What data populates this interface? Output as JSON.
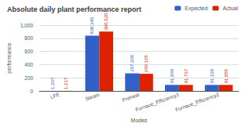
{
  "chart_data": {
    "type": "bar",
    "title": "Absolute daily plant performance report",
    "xlabel": "Modes",
    "ylabel": "performance",
    "categories": [
      "LFE",
      "Steam",
      "Preheat",
      "Furnace_Efficiency1",
      "Furnace_Efficiency2"
    ],
    "series": [
      {
        "name": "Expected",
        "color": "#3060c8",
        "values": [
          1.207,
          838.34,
          267.2,
          91.96,
          91.1
        ],
        "value_labels": [
          "1.207",
          "838.340",
          "267.200",
          "91.960",
          "91.100"
        ]
      },
      {
        "name": "Actual",
        "color": "#dd2200",
        "values": [
          1.217,
          900.52,
          260.128,
          91.767,
          91.855
        ],
        "value_labels": [
          "1.217",
          "900.520",
          "260.128",
          "91.767",
          "91.855"
        ]
      }
    ],
    "ylim": [
      0,
      1000
    ],
    "yticks": [
      0,
      200,
      400,
      600,
      800,
      {
        "value": 1000,
        "label": "1,000"
      }
    ],
    "grid": true,
    "legend": "upper right",
    "data_labels": true
  }
}
